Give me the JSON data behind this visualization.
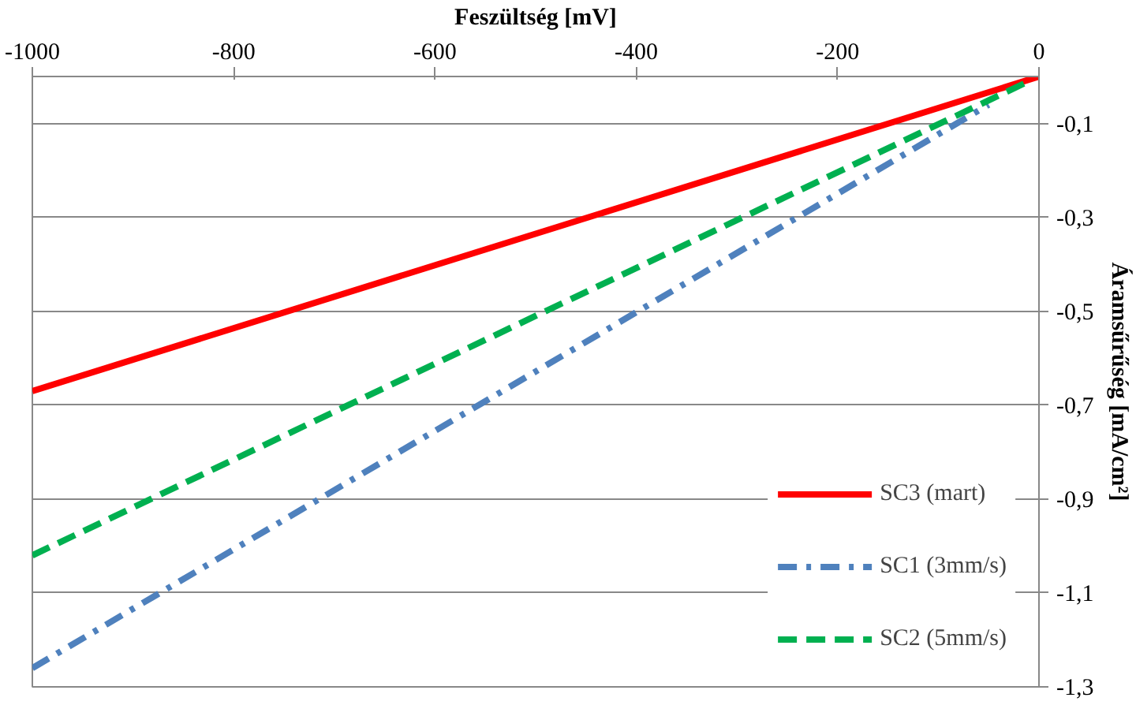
{
  "chart_data": {
    "type": "line",
    "xlabel": "Feszültség [mV]",
    "ylabel": "Áramsűrűség [mA/cm²]",
    "xlim": [
      -1000,
      0
    ],
    "xticks": [
      -1000,
      -800,
      -600,
      -400,
      -200,
      0
    ],
    "ylim": [
      -1.3,
      0
    ],
    "yticks": [
      {
        "value": -0.1,
        "label": "-0,1"
      },
      {
        "value": -0.3,
        "label": "-0,3"
      },
      {
        "value": -0.5,
        "label": "-0,5"
      },
      {
        "value": -0.7,
        "label": "-0,7"
      },
      {
        "value": -0.9,
        "label": "-0,9"
      },
      {
        "value": -1.1,
        "label": "-1,1"
      },
      {
        "value": -1.3,
        "label": "-1,3"
      }
    ],
    "grid": "y",
    "legend": "bottom right",
    "marker": "none",
    "series": [
      {
        "name": "SC3 (mart)",
        "color": "#ff0000",
        "line_style": "solid",
        "x": [
          -1000,
          0
        ],
        "values": [
          -0.67,
          0
        ]
      },
      {
        "name": "SC1 (3mm/s)",
        "color": "#4f81bd",
        "line_style": "dashdot",
        "x": [
          -1000,
          -50
        ],
        "values": [
          -1.26,
          -0.06
        ]
      },
      {
        "name": "SC2 (5mm/s)",
        "color": "#00b050",
        "line_style": "dashed",
        "x": [
          -1000,
          -10
        ],
        "values": [
          -1.02,
          -0.01
        ]
      }
    ]
  }
}
